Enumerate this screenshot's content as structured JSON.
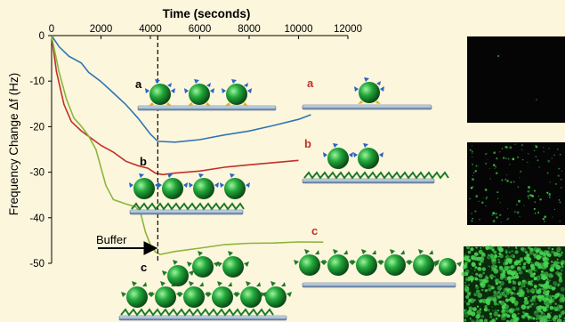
{
  "chart_data": {
    "type": "line",
    "xlabel": "Time (seconds)",
    "ylabel": "Frequency Change Δf (Hz)",
    "xlim": [
      0,
      12000
    ],
    "ylim": [
      -50,
      0
    ],
    "xticks": [
      "0",
      "2000",
      "4000",
      "6000",
      "8000",
      "10000",
      "12000"
    ],
    "yticks": [
      "0",
      "-10",
      "-20",
      "-30",
      "-40",
      "-50"
    ],
    "x_tick_values": [
      0,
      2000,
      4000,
      6000,
      8000,
      10000,
      12000
    ],
    "y_tick_values": [
      0,
      -10,
      -20,
      -30,
      -40,
      -50
    ],
    "grid": false,
    "buffer_time": 4300,
    "series": [
      {
        "color": "#2e75b6",
        "points": [
          [
            0,
            0
          ],
          [
            300,
            -2.5
          ],
          [
            700,
            -4.5
          ],
          [
            1200,
            -6
          ],
          [
            1500,
            -8
          ],
          [
            2000,
            -10
          ],
          [
            2500,
            -12.5
          ],
          [
            3000,
            -15
          ],
          [
            3500,
            -18
          ],
          [
            4000,
            -21.5
          ],
          [
            4300,
            -23.3
          ],
          [
            5000,
            -23.3
          ],
          [
            6000,
            -22.8
          ],
          [
            7000,
            -21.8
          ],
          [
            8000,
            -21
          ],
          [
            9000,
            -19.8
          ],
          [
            10000,
            -18.5
          ],
          [
            10500,
            -17.5
          ]
        ]
      },
      {
        "color": "#c0302a",
        "points": [
          [
            0,
            0
          ],
          [
            200,
            -8
          ],
          [
            500,
            -15
          ],
          [
            800,
            -19
          ],
          [
            1200,
            -21
          ],
          [
            1600,
            -22.5
          ],
          [
            2000,
            -24
          ],
          [
            2500,
            -25.5
          ],
          [
            3000,
            -27.5
          ],
          [
            3500,
            -28.5
          ],
          [
            3900,
            -29
          ],
          [
            4200,
            -30.3
          ],
          [
            4500,
            -30.5
          ],
          [
            5000,
            -30.2
          ],
          [
            6000,
            -29.8
          ],
          [
            7000,
            -29
          ],
          [
            8000,
            -28.5
          ],
          [
            9000,
            -28
          ],
          [
            10000,
            -27.5
          ]
        ]
      },
      {
        "color": "#8db53c",
        "points": [
          [
            0,
            0
          ],
          [
            300,
            -8
          ],
          [
            600,
            -14
          ],
          [
            900,
            -18
          ],
          [
            1200,
            -20
          ],
          [
            1500,
            -22
          ],
          [
            1800,
            -25
          ],
          [
            2000,
            -29
          ],
          [
            2200,
            -33
          ],
          [
            2500,
            -36
          ],
          [
            3000,
            -37
          ],
          [
            3400,
            -37.5
          ],
          [
            3600,
            -39
          ],
          [
            3800,
            -43
          ],
          [
            4000,
            -46
          ],
          [
            4200,
            -47.5
          ],
          [
            4400,
            -48
          ],
          [
            5000,
            -47.5
          ],
          [
            6000,
            -46.8
          ],
          [
            7000,
            -46
          ],
          [
            8000,
            -45.7
          ],
          [
            9000,
            -45.6
          ],
          [
            10000,
            -45.3
          ],
          [
            11000,
            -45.3
          ]
        ]
      }
    ]
  },
  "labels": {
    "a_black": "a",
    "b_black": "b",
    "c_black": "c",
    "a_red": "a",
    "b_red": "b",
    "c_red": "c",
    "buffer": "Buffer"
  }
}
